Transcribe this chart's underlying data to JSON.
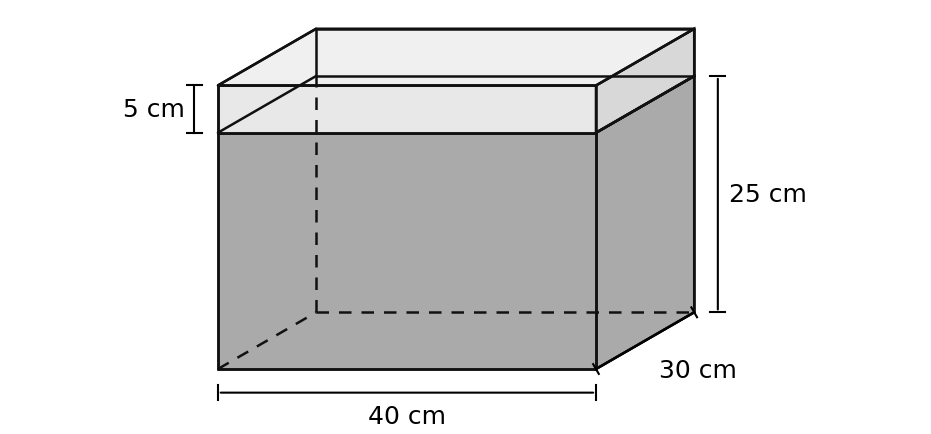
{
  "face_color": "#aaaaaa",
  "face_alpha": 0.85,
  "edge_color": "#111111",
  "line_width": 1.8,
  "background_color": "#ffffff",
  "dim_5": "5 cm",
  "dim_25": "25 cm",
  "dim_30": "30 cm",
  "dim_40": "40 cm",
  "font_size": 18,
  "tick_size": 8
}
